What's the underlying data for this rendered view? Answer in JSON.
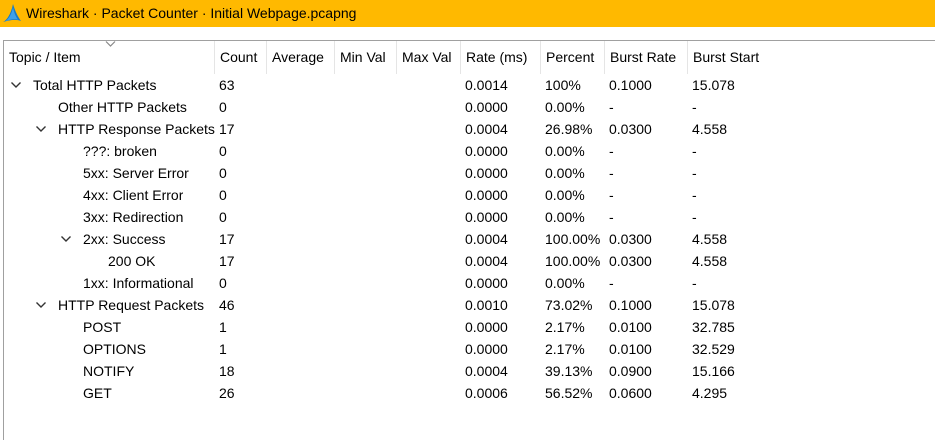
{
  "window": {
    "title": "Wireshark · Packet Counter · Initial Webpage.pcapng",
    "app_icon": "wireshark-fin-icon",
    "title_bar_color": "#ffb900"
  },
  "table": {
    "columns": [
      "Topic / Item",
      "Count",
      "Average",
      "Min Val",
      "Max Val",
      "Rate (ms)",
      "Percent",
      "Burst Rate",
      "Burst Start"
    ],
    "sort_indicator_icon": "sort-chevron-down-icon",
    "rows": [
      {
        "topic": "Total HTTP Packets",
        "count": "63",
        "average": "",
        "min_val": "",
        "max_val": "",
        "rate": "0.0014",
        "percent": "100%",
        "burst_rate": "0.1000",
        "burst_start": "15.078",
        "level": 0,
        "expanded": true
      },
      {
        "topic": "Other HTTP Packets",
        "count": "0",
        "average": "",
        "min_val": "",
        "max_val": "",
        "rate": "0.0000",
        "percent": "0.00%",
        "burst_rate": "-",
        "burst_start": "-",
        "level": 1,
        "expanded": null
      },
      {
        "topic": "HTTP Response Packets",
        "count": "17",
        "average": "",
        "min_val": "",
        "max_val": "",
        "rate": "0.0004",
        "percent": "26.98%",
        "burst_rate": "0.0300",
        "burst_start": "4.558",
        "level": 1,
        "expanded": true
      },
      {
        "topic": "???: broken",
        "count": "0",
        "average": "",
        "min_val": "",
        "max_val": "",
        "rate": "0.0000",
        "percent": "0.00%",
        "burst_rate": "-",
        "burst_start": "-",
        "level": 2,
        "expanded": null
      },
      {
        "topic": "5xx: Server Error",
        "count": "0",
        "average": "",
        "min_val": "",
        "max_val": "",
        "rate": "0.0000",
        "percent": "0.00%",
        "burst_rate": "-",
        "burst_start": "-",
        "level": 2,
        "expanded": null
      },
      {
        "topic": "4xx: Client Error",
        "count": "0",
        "average": "",
        "min_val": "",
        "max_val": "",
        "rate": "0.0000",
        "percent": "0.00%",
        "burst_rate": "-",
        "burst_start": "-",
        "level": 2,
        "expanded": null
      },
      {
        "topic": "3xx: Redirection",
        "count": "0",
        "average": "",
        "min_val": "",
        "max_val": "",
        "rate": "0.0000",
        "percent": "0.00%",
        "burst_rate": "-",
        "burst_start": "-",
        "level": 2,
        "expanded": null
      },
      {
        "topic": "2xx: Success",
        "count": "17",
        "average": "",
        "min_val": "",
        "max_val": "",
        "rate": "0.0004",
        "percent": "100.00%",
        "burst_rate": "0.0300",
        "burst_start": "4.558",
        "level": 2,
        "expanded": true
      },
      {
        "topic": "200 OK",
        "count": "17",
        "average": "",
        "min_val": "",
        "max_val": "",
        "rate": "0.0004",
        "percent": "100.00%",
        "burst_rate": "0.0300",
        "burst_start": "4.558",
        "level": 3,
        "expanded": null
      },
      {
        "topic": "1xx: Informational",
        "count": "0",
        "average": "",
        "min_val": "",
        "max_val": "",
        "rate": "0.0000",
        "percent": "0.00%",
        "burst_rate": "-",
        "burst_start": "-",
        "level": 2,
        "expanded": null
      },
      {
        "topic": "HTTP Request Packets",
        "count": "46",
        "average": "",
        "min_val": "",
        "max_val": "",
        "rate": "0.0010",
        "percent": "73.02%",
        "burst_rate": "0.1000",
        "burst_start": "15.078",
        "level": 1,
        "expanded": true
      },
      {
        "topic": "POST",
        "count": "1",
        "average": "",
        "min_val": "",
        "max_val": "",
        "rate": "0.0000",
        "percent": "2.17%",
        "burst_rate": "0.0100",
        "burst_start": "32.785",
        "level": 2,
        "expanded": null
      },
      {
        "topic": "OPTIONS",
        "count": "1",
        "average": "",
        "min_val": "",
        "max_val": "",
        "rate": "0.0000",
        "percent": "2.17%",
        "burst_rate": "0.0100",
        "burst_start": "32.529",
        "level": 2,
        "expanded": null
      },
      {
        "topic": "NOTIFY",
        "count": "18",
        "average": "",
        "min_val": "",
        "max_val": "",
        "rate": "0.0004",
        "percent": "39.13%",
        "burst_rate": "0.0900",
        "burst_start": "15.166",
        "level": 2,
        "expanded": null
      },
      {
        "topic": "GET",
        "count": "26",
        "average": "",
        "min_val": "",
        "max_val": "",
        "rate": "0.0006",
        "percent": "56.52%",
        "burst_rate": "0.0600",
        "burst_start": "4.295",
        "level": 2,
        "expanded": null
      }
    ]
  }
}
